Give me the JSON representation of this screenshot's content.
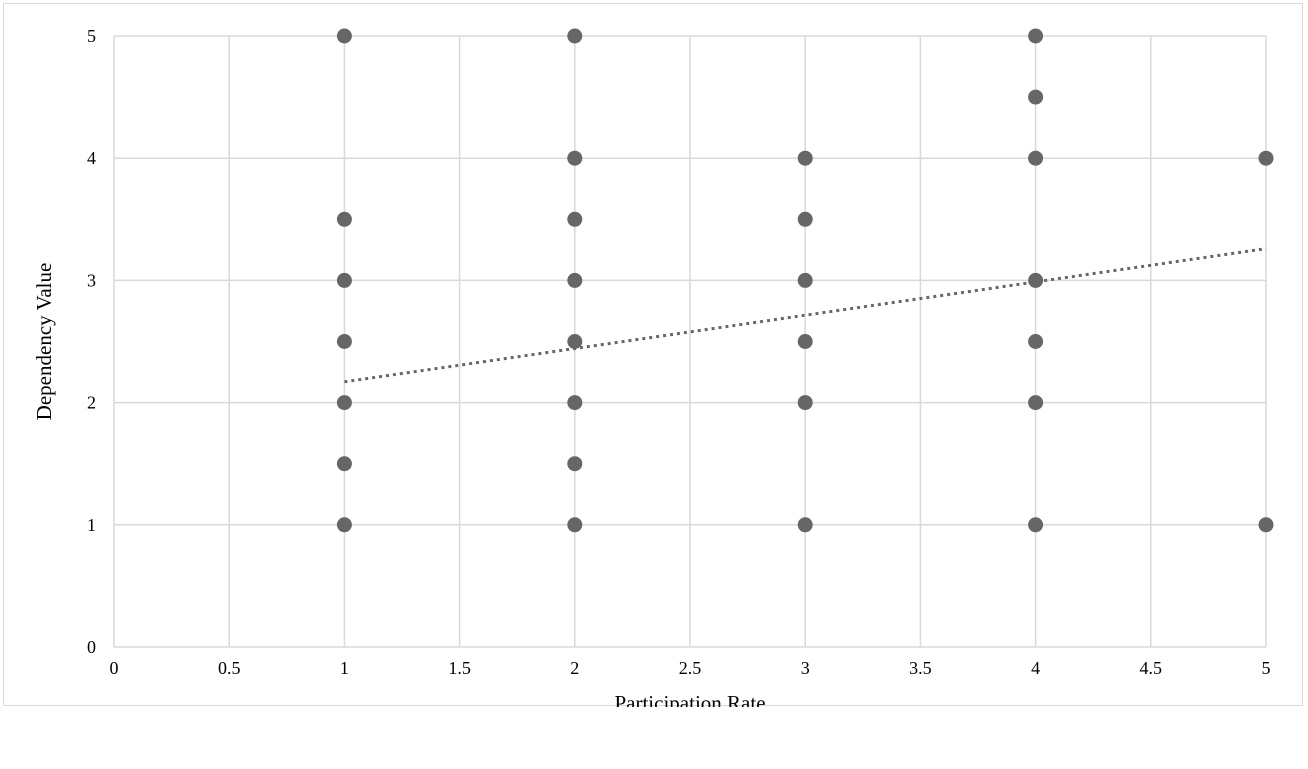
{
  "chart_data": {
    "type": "scatter",
    "title": "",
    "xlabel": "Participation Rate",
    "ylabel": "Dependency Value",
    "xlim": [
      0,
      5
    ],
    "ylim": [
      0,
      5
    ],
    "x_ticks": [
      "0",
      "0.5",
      "1",
      "1.5",
      "2",
      "2.5",
      "3",
      "3.5",
      "4",
      "4.5",
      "5"
    ],
    "y_ticks": [
      "0",
      "1",
      "2",
      "3",
      "4",
      "5"
    ],
    "grid": true,
    "legend": "none",
    "colors": {
      "marker": "#666666",
      "trendline": "#666666",
      "grid": "#d9d9d9"
    },
    "series": [
      {
        "points": [
          {
            "x": 1,
            "y": 5
          },
          {
            "x": 1,
            "y": 3.5
          },
          {
            "x": 1,
            "y": 3
          },
          {
            "x": 1,
            "y": 2.5
          },
          {
            "x": 1,
            "y": 2
          },
          {
            "x": 1,
            "y": 1.5
          },
          {
            "x": 1,
            "y": 1
          },
          {
            "x": 2,
            "y": 5
          },
          {
            "x": 2,
            "y": 4
          },
          {
            "x": 2,
            "y": 3.5
          },
          {
            "x": 2,
            "y": 3
          },
          {
            "x": 2,
            "y": 2.5
          },
          {
            "x": 2,
            "y": 2
          },
          {
            "x": 2,
            "y": 1.5
          },
          {
            "x": 2,
            "y": 1
          },
          {
            "x": 3,
            "y": 4
          },
          {
            "x": 3,
            "y": 3.5
          },
          {
            "x": 3,
            "y": 3
          },
          {
            "x": 3,
            "y": 2.5
          },
          {
            "x": 3,
            "y": 2
          },
          {
            "x": 3,
            "y": 1
          },
          {
            "x": 4,
            "y": 5
          },
          {
            "x": 4,
            "y": 4.5
          },
          {
            "x": 4,
            "y": 4
          },
          {
            "x": 4,
            "y": 3
          },
          {
            "x": 4,
            "y": 2.5
          },
          {
            "x": 4,
            "y": 2
          },
          {
            "x": 4,
            "y": 1
          },
          {
            "x": 5,
            "y": 4
          },
          {
            "x": 5,
            "y": 1
          }
        ]
      }
    ],
    "trendline": {
      "type": "linear",
      "style": "dotted",
      "x_range": [
        1,
        5
      ],
      "y_range": [
        2.17,
        3.26
      ]
    }
  }
}
